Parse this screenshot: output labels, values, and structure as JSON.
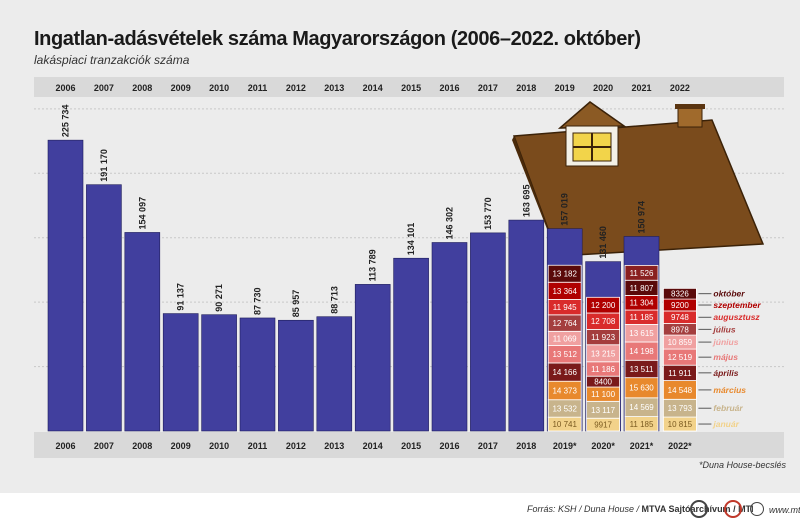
{
  "header": {
    "title": "Ingatlan-adásvételek száma Magyarországon (2006–2022. október)",
    "subtitle": "lakáspiaci tranzakciók száma"
  },
  "footer": {
    "note": "*Duna House-becslés",
    "source_prefix": "Forrás: KSH / Duna House / ",
    "source_bold": "MTVA Sajtóarchívum / MTI",
    "website": "www.mti.hu"
  },
  "colors": {
    "bar": "#413f9e",
    "axis_band": "#d9d9d9",
    "background": "#ececec",
    "roof": "#7a4b1c"
  },
  "chart_data": {
    "type": "bar",
    "title": "Ingatlan-adásvételek száma Magyarországon (2006–2022. október)",
    "subtitle": "lakáspiaci tranzakciók száma",
    "ylim": [
      0,
      260000
    ],
    "grid": true,
    "top_labels": [
      "2006",
      "2007",
      "2008",
      "2009",
      "2010",
      "2011",
      "2012",
      "2013",
      "2014",
      "2015",
      "2016",
      "2017",
      "2018",
      "2019",
      "2020",
      "2021",
      "2022"
    ],
    "categories": [
      "2006",
      "2007",
      "2008",
      "2009",
      "2010",
      "2011",
      "2012",
      "2013",
      "2014",
      "2015",
      "2016",
      "2017",
      "2018",
      "2019*",
      "2020*",
      "2021*",
      "2022*"
    ],
    "values": [
      225734,
      191170,
      154097,
      91137,
      90271,
      87730,
      85957,
      88713,
      113789,
      134101,
      146302,
      153770,
      163695,
      157019,
      131460,
      150974,
      null
    ],
    "value_labels": [
      "225 734",
      "191 170",
      "154 097",
      "91 137",
      "90 271",
      "87 730",
      "85 957",
      "88 713",
      "113 789",
      "134 101",
      "146 302",
      "153 770",
      "163 695",
      "157 019",
      "131 460",
      "150 974",
      ""
    ],
    "months": [
      "január",
      "február",
      "március",
      "április",
      "május",
      "június",
      "július",
      "augusztus",
      "szeptember",
      "október",
      "november",
      "december"
    ],
    "month_colors": [
      "#f2d28a",
      "#c8b48c",
      "#e8892d",
      "#7a1a1a",
      "#e87878",
      "#f0a0a0",
      "#a43e3e",
      "#d92b2b",
      "#b00000",
      "#5a0a0a",
      "#8a2020",
      "#6a1010"
    ],
    "monthly": {
      "2019*": [
        10741,
        13532,
        14373,
        14166,
        13512,
        11069,
        12764,
        11945,
        13364,
        13182,
        null,
        null
      ],
      "2020*": [
        9917,
        13117,
        11100,
        8400,
        11186,
        13215,
        11923,
        12708,
        12200,
        null,
        null,
        null
      ],
      "2021*": [
        11185,
        14569,
        15630,
        13511,
        14198,
        13615,
        null,
        11185,
        11304,
        11807,
        11526,
        null
      ],
      "2022*": [
        10815,
        13793,
        14548,
        11911,
        12519,
        10859,
        8978,
        9748,
        9200,
        8326,
        null,
        null
      ]
    },
    "monthly_labels": {
      "2019*": [
        "10 741",
        "13 532",
        "14 373",
        "14 166",
        "13 512",
        "11 069",
        "12 764",
        "11 945",
        "13 364",
        "13 182",
        "",
        ""
      ],
      "2020*": [
        "9917",
        "13 117",
        "11 100",
        "8400",
        "11 186",
        "13 215",
        "11 923",
        "12 708",
        "12 200",
        "",
        "",
        ""
      ],
      "2021*": [
        "11 185",
        "14 569",
        "15 630",
        "13 511",
        "14 198",
        "13 615",
        "",
        "11 185",
        "11 304",
        "11 807",
        "11 526",
        ""
      ],
      "2022*": [
        "10 815",
        "13 793",
        "14 548",
        "11 911",
        "12 519",
        "10 859",
        "8978",
        "9748",
        "9200",
        "8326",
        "",
        ""
      ]
    },
    "legend": [
      "október",
      "szeptember",
      "augusztusz",
      "július",
      "június",
      "május",
      "április",
      "március",
      "február",
      "január"
    ]
  }
}
